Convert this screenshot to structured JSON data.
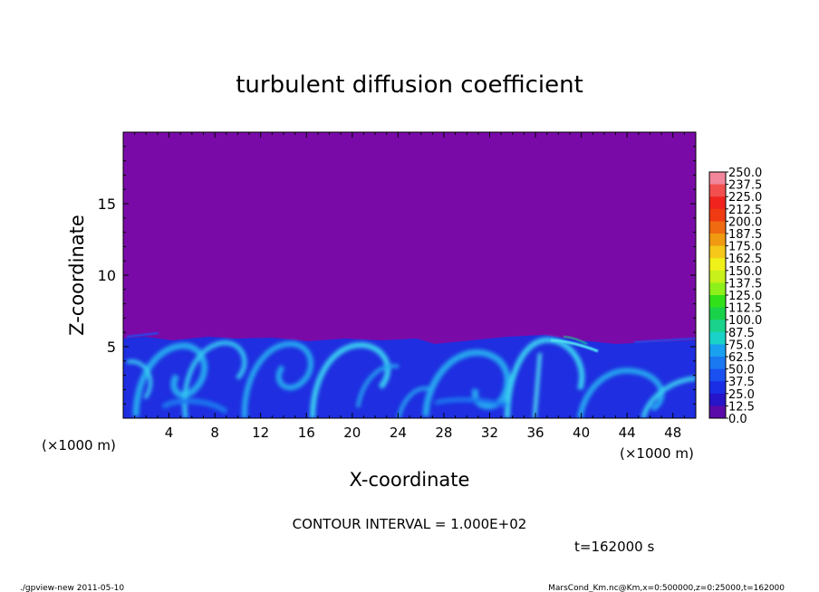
{
  "chart_data": {
    "type": "heatmap",
    "title": "turbulent diffusion coefficient",
    "xlabel": "X-coordinate",
    "ylabel": "Z-coordinate",
    "x_unit": "(×1000 m)",
    "x_unit_right": "(×1000 m)",
    "xlim": [
      0,
      50
    ],
    "ylim": [
      0,
      20
    ],
    "x_ticks": [
      "4",
      "8",
      "12",
      "16",
      "20",
      "24",
      "28",
      "32",
      "36",
      "40",
      "44",
      "48"
    ],
    "y_ticks": [
      "5",
      "10",
      "15"
    ],
    "colorbar": {
      "levels": [
        "250.0",
        "237.5",
        "225.0",
        "212.5",
        "200.0",
        "187.5",
        "175.0",
        "162.5",
        "150.0",
        "137.5",
        "125.0",
        "112.5",
        "100.0",
        "87.5",
        "75.0",
        "62.5",
        "50.0",
        "37.5",
        "25.0",
        "12.5",
        "0.0"
      ],
      "colors": [
        "#f2869a",
        "#f2504f",
        "#f0231f",
        "#f03a12",
        "#f06a12",
        "#f09a12",
        "#f5c81a",
        "#f0f01a",
        "#c8f01a",
        "#8ef01a",
        "#32e01a",
        "#1ad24a",
        "#1ad28c",
        "#1ad2c8",
        "#1aa0f0",
        "#1a78f0",
        "#1a50f0",
        "#1a2ee6",
        "#2614c8",
        "#5a0aa8"
      ]
    },
    "background_value_color": "#7a0aa8",
    "contour_interval": "CONTOUR INTERVAL = 1.000E+02",
    "time_label": "t=162000 s"
  },
  "footer": {
    "left": "./gpview-new   2011-05-10",
    "right": "MarsCond_Km.nc@Km,x=0:500000,z=0:25000,t=162000"
  }
}
